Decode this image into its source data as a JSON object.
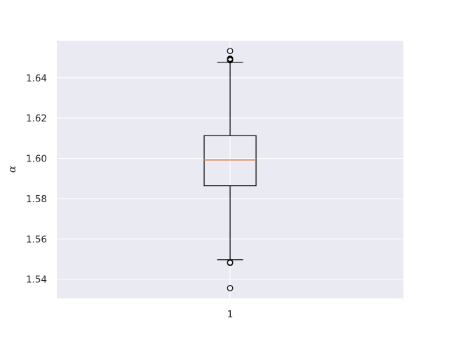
{
  "chart_data": {
    "type": "boxplot",
    "title": "",
    "xlabel": "",
    "ylabel": "α",
    "categories": [
      "1"
    ],
    "ylim": [
      1.5305,
      1.6584
    ],
    "yticks": [
      1.54,
      1.56,
      1.58,
      1.6,
      1.62,
      1.64
    ],
    "ytick_labels": [
      "1.54",
      "1.56",
      "1.58",
      "1.60",
      "1.62",
      "1.64"
    ],
    "grid": true,
    "series": [
      {
        "category": "1",
        "whisker_low": 1.5497,
        "q1": 1.5864,
        "median": 1.5992,
        "q3": 1.6113,
        "whisker_high": 1.6477,
        "outliers": [
          1.5356,
          1.5481,
          1.5484,
          1.6487,
          1.6491,
          1.6495,
          1.6533
        ]
      }
    ],
    "colors": {
      "plot_background": "#eaeaf2",
      "grid": "#ffffff",
      "box": "#000000",
      "median": "#dd8452"
    }
  }
}
